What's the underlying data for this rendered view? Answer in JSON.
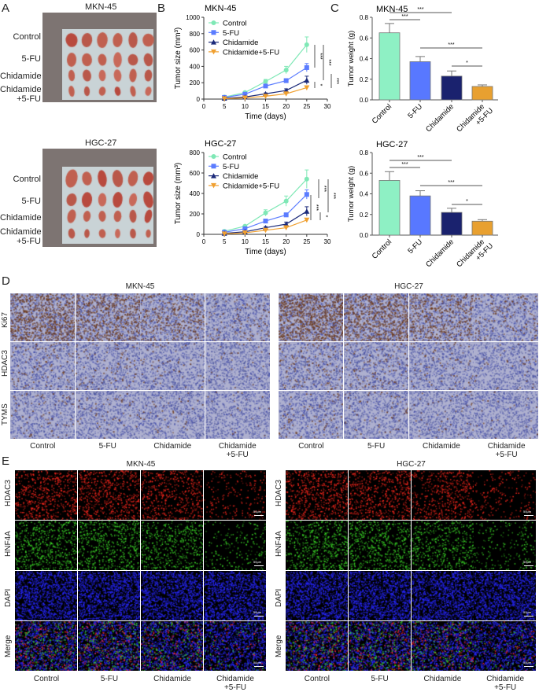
{
  "panels": {
    "A": "A",
    "B": "B",
    "C": "C",
    "D": "D",
    "E": "E"
  },
  "panel_a": {
    "groups": [
      {
        "title": "MKN-45",
        "rows": [
          "Control",
          "5-FU",
          "Chidamide",
          "Chidamide",
          "+5-FU"
        ]
      },
      {
        "title": "HGC-27",
        "rows": [
          "Control",
          "5-FU",
          "Chidamide",
          "Chidamide",
          "+5-FU"
        ]
      }
    ]
  },
  "chart_data": [
    {
      "type": "line",
      "title": "MKN-45",
      "xlabel": "Time (days)",
      "ylabel": "Tumor size (mm³)",
      "xlim": [
        0,
        30
      ],
      "ylim": [
        0,
        1000
      ],
      "xticks": [
        0,
        5,
        10,
        15,
        20,
        25,
        30
      ],
      "yticks": [
        0,
        200,
        400,
        600,
        800,
        1000
      ],
      "x": [
        5,
        10,
        15,
        20,
        25
      ],
      "legend": "top-left",
      "series": [
        {
          "name": "Control",
          "color": "#7fe8b6",
          "marker": "circle",
          "values": [
            25,
            80,
            215,
            355,
            665
          ],
          "err": [
            5,
            10,
            25,
            45,
            95
          ]
        },
        {
          "name": "5-FU",
          "color": "#5b7cff",
          "marker": "square",
          "values": [
            20,
            60,
            160,
            225,
            385
          ],
          "err": [
            4,
            8,
            15,
            25,
            50
          ]
        },
        {
          "name": "Chidamide",
          "color": "#1b2a7a",
          "marker": "triangle",
          "values": [
            10,
            25,
            65,
            105,
            230
          ],
          "err": [
            3,
            5,
            10,
            20,
            50
          ]
        },
        {
          "name": "Chidamide+5-FU",
          "color": "#f0a030",
          "marker": "triangle-down",
          "values": [
            5,
            15,
            35,
            65,
            140
          ],
          "err": [
            2,
            4,
            8,
            12,
            20
          ]
        }
      ],
      "significance": [
        "***",
        "***",
        "***",
        "*"
      ]
    },
    {
      "type": "bar",
      "title": "MKN-45",
      "ylabel": "Tumor weight (g)",
      "ylim": [
        0,
        0.8
      ],
      "yticks": [
        "0.0",
        "0.2",
        "0.4",
        "0.6",
        "0.8"
      ],
      "categories": [
        "Control",
        "5-FU",
        "Chidamide",
        "Chidamide\n+5-FU"
      ],
      "values": [
        0.65,
        0.37,
        0.23,
        0.13
      ],
      "err": [
        0.09,
        0.05,
        0.05,
        0.015
      ],
      "colors": [
        "#8ef0c4",
        "#5878ff",
        "#1a226e",
        "#e8a030"
      ],
      "significance": [
        {
          "pair": [
            0,
            1
          ],
          "label": "***"
        },
        {
          "pair": [
            0,
            2
          ],
          "label": "***"
        },
        {
          "pair": [
            1,
            3
          ],
          "label": "***"
        },
        {
          "pair": [
            2,
            3
          ],
          "label": "*"
        }
      ]
    },
    {
      "type": "line",
      "title": "HGC-27",
      "xlabel": "Time (days)",
      "ylabel": "Tumor size (mm³)",
      "xlim": [
        0,
        30
      ],
      "ylim": [
        0,
        800
      ],
      "xticks": [
        0,
        5,
        10,
        15,
        20,
        25,
        30
      ],
      "yticks": [
        0,
        200,
        400,
        600,
        800
      ],
      "x": [
        5,
        10,
        15,
        20,
        25
      ],
      "legend": "top-left",
      "series": [
        {
          "name": "Control",
          "color": "#7fe8b6",
          "marker": "circle",
          "values": [
            30,
            80,
            210,
            325,
            540
          ],
          "err": [
            5,
            10,
            30,
            50,
            90
          ]
        },
        {
          "name": "5-FU",
          "color": "#5b7cff",
          "marker": "square",
          "values": [
            20,
            55,
            130,
            190,
            390
          ],
          "err": [
            4,
            8,
            12,
            20,
            45
          ]
        },
        {
          "name": "Chidamide",
          "color": "#1b2a7a",
          "marker": "triangle",
          "values": [
            10,
            25,
            65,
            100,
            225
          ],
          "err": [
            3,
            5,
            10,
            20,
            45
          ]
        },
        {
          "name": "Chidamide+5-FU",
          "color": "#f0a030",
          "marker": "triangle-down",
          "values": [
            5,
            15,
            40,
            65,
            140
          ],
          "err": [
            2,
            4,
            8,
            12,
            15
          ]
        }
      ],
      "significance": [
        "***",
        "***",
        "***",
        "*"
      ]
    },
    {
      "type": "bar",
      "title": "HGC-27",
      "ylabel": "Tumor weight (g)",
      "ylim": [
        0,
        0.8
      ],
      "yticks": [
        "0.0",
        "0.2",
        "0.4",
        "0.6",
        "0.8"
      ],
      "categories": [
        "Control",
        "5-FU",
        "Chidamide",
        "Chidamide\n+5-FU"
      ],
      "values": [
        0.53,
        0.38,
        0.22,
        0.135
      ],
      "err": [
        0.085,
        0.05,
        0.04,
        0.015
      ],
      "colors": [
        "#8ef0c4",
        "#5878ff",
        "#1a226e",
        "#e8a030"
      ],
      "significance": [
        {
          "pair": [
            0,
            1
          ],
          "label": "***"
        },
        {
          "pair": [
            0,
            2
          ],
          "label": "***"
        },
        {
          "pair": [
            1,
            3
          ],
          "label": "***"
        },
        {
          "pair": [
            2,
            3
          ],
          "label": "*"
        }
      ]
    }
  ],
  "panel_d": {
    "groups": [
      "MKN-45",
      "HGC-27"
    ],
    "rows": [
      "Ki67",
      "HDAC3",
      "TYMS"
    ],
    "columns": [
      "Control",
      "5-FU",
      "Chidamide",
      "Chidamide",
      "+5-FU"
    ]
  },
  "panel_e": {
    "groups": [
      "MKN-45",
      "HGC-27"
    ],
    "rows": [
      "HDAC3",
      "HNF4A",
      "DAPI",
      "Merge"
    ],
    "columns": [
      "Control",
      "5-FU",
      "Chidamide",
      "Chidamide",
      "+5-FU"
    ],
    "scale_bar": "50μm"
  }
}
